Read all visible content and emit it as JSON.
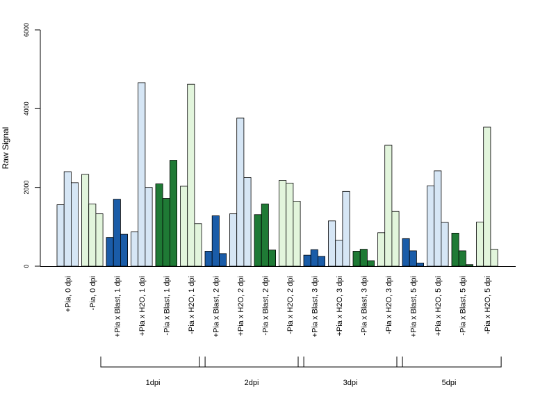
{
  "chart_data": {
    "type": "bar",
    "ylabel": "Raw Signal",
    "ylim": [
      0,
      6000
    ],
    "yticks": [
      0,
      2000,
      4000,
      6000
    ],
    "grid": false,
    "categories": [
      "+Pia, 0 dpi",
      "-Pia, 0 dpi",
      "+Pia x Blast, 1 dpi",
      "+Pia x H2O, 1 dpi",
      "-Pia x Blast, 1 dpi",
      "-Pia x H2O, 1 dpi",
      "+Pia x Blast, 2 dpi",
      "+Pia x H2O, 2 dpi",
      "-Pia x Blast, 2 dpi",
      "-Pia x H2O, 2 dpi",
      "+Pia x Blast, 3 dpi",
      "+Pia x H2O, 3 dpi",
      "-Pia x Blast, 3 dpi",
      "-Pia x H2O, 3 dpi",
      "+Pia x Blast, 5 dpi",
      "+Pia x H2O, 5 dpi",
      "-Pia x Blast, 5 dpi",
      "-Pia x H2O, 5 dpi"
    ],
    "values": [
      [
        1560,
        2400,
        2120
      ],
      [
        2330,
        1580,
        1330
      ],
      [
        730,
        1700,
        810
      ],
      [
        870,
        4660,
        2000
      ],
      [
        2090,
        1720,
        2690
      ],
      [
        2030,
        4620,
        1080
      ],
      [
        380,
        1280,
        320
      ],
      [
        1330,
        3760,
        2250
      ],
      [
        1310,
        1580,
        410
      ],
      [
        2180,
        2110,
        1650
      ],
      [
        280,
        420,
        250
      ],
      [
        1150,
        660,
        1900
      ],
      [
        380,
        430,
        140
      ],
      [
        850,
        3070,
        1390
      ],
      [
        700,
        390,
        80
      ],
      [
        2040,
        2420,
        1110
      ],
      [
        840,
        390,
        40
      ],
      [
        1120,
        3530,
        430
      ]
    ],
    "bar_colors": [
      "#d6e6f5",
      "#e2f5dc",
      "#1a5ca8",
      "#d6e6f5",
      "#1f7a35",
      "#e2f5dc",
      "#1a5ca8",
      "#d6e6f5",
      "#1f7a35",
      "#e2f5dc",
      "#1a5ca8",
      "#d6e6f5",
      "#1f7a35",
      "#e2f5dc",
      "#1a5ca8",
      "#d6e6f5",
      "#1f7a35",
      "#e2f5dc"
    ],
    "groups": [
      {
        "label": "1dpi",
        "from": 2,
        "to": 5
      },
      {
        "label": "2dpi",
        "from": 6,
        "to": 9
      },
      {
        "label": "3dpi",
        "from": 10,
        "to": 13
      },
      {
        "label": "5dpi",
        "from": 14,
        "to": 17
      }
    ]
  }
}
